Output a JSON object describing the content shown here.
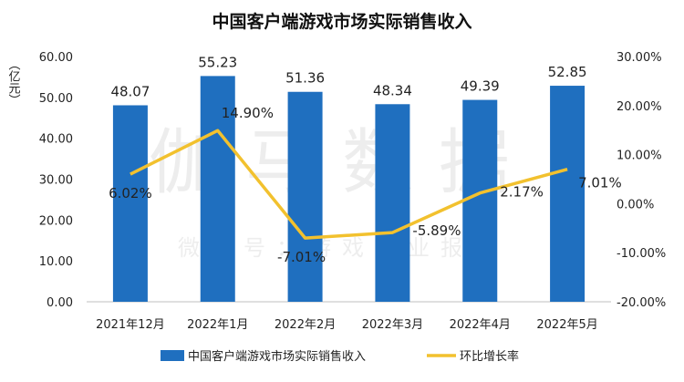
{
  "chart_data": {
    "type": "bar",
    "title": "中国客户端游戏市场实际销售收入",
    "watermark": "伽马数据",
    "watermark_sub": "微信号：游戏产业报告",
    "categories": [
      "2021年12月",
      "2022年1月",
      "2022年2月",
      "2022年3月",
      "2022年4月",
      "2022年5月"
    ],
    "left_axis": {
      "unit_label": "（亿元）",
      "ylim": [
        0,
        60
      ],
      "ticks": [
        "0.00",
        "10.00",
        "20.00",
        "30.00",
        "40.00",
        "50.00",
        "60.00"
      ]
    },
    "right_axis": {
      "ylim": [
        -20,
        30
      ],
      "ticks": [
        "-20.00%",
        "-10.00%",
        "0.00%",
        "10.00%",
        "20.00%",
        "30.00%"
      ]
    },
    "series": [
      {
        "name": "中国客户端游戏市场实际销售收入",
        "type": "bar",
        "axis": "left",
        "color": "#1f6fbf",
        "values": [
          48.07,
          55.23,
          51.36,
          48.34,
          49.39,
          52.85
        ],
        "labels": [
          "48.07",
          "55.23",
          "51.36",
          "48.34",
          "49.39",
          "52.85"
        ]
      },
      {
        "name": "环比增长率",
        "type": "line",
        "axis": "right",
        "color": "#f2c12e",
        "values": [
          6.02,
          14.9,
          -7.01,
          -5.89,
          2.17,
          7.01
        ],
        "labels": [
          "6.02%",
          "14.90%",
          "-7.01%",
          "-5.89%",
          "2.17%",
          "7.01%"
        ]
      }
    ],
    "legend_position": "bottom",
    "grid": false
  }
}
